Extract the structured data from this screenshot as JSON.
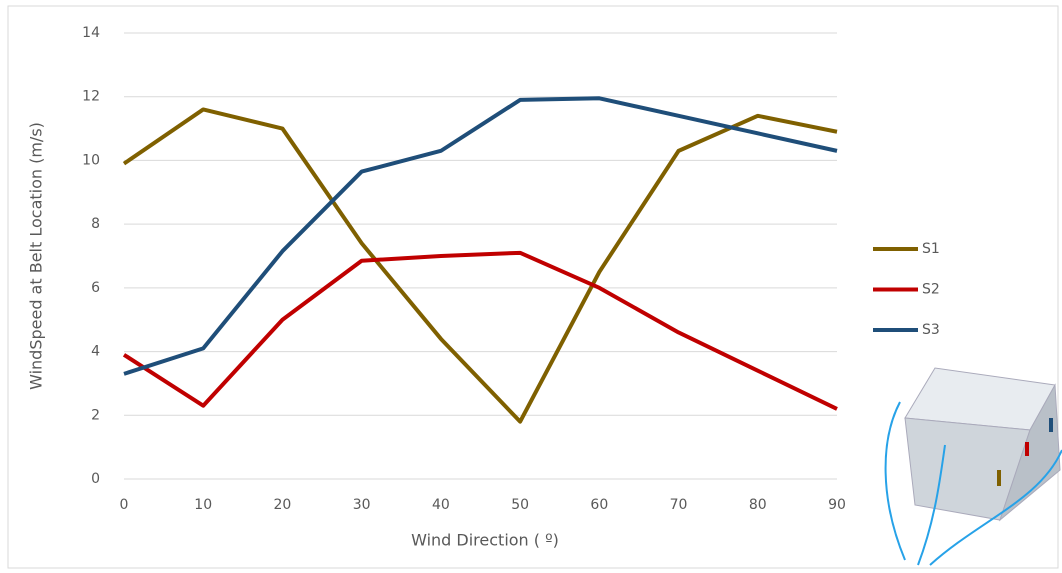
{
  "chart_data": {
    "type": "line",
    "xlabel": "Wind Direction ( º)",
    "ylabel": "WindSpeed at Belt Location (m/s)",
    "x": [
      0,
      10,
      20,
      30,
      40,
      50,
      60,
      70,
      80,
      90
    ],
    "series": [
      {
        "name": "S1",
        "color": "#7f6000",
        "values": [
          9.9,
          11.6,
          11.0,
          7.4,
          4.4,
          1.8,
          6.5,
          10.3,
          11.4,
          10.9
        ]
      },
      {
        "name": "S2",
        "color": "#c00000",
        "values": [
          3.9,
          2.3,
          5.0,
          6.85,
          7.0,
          7.1,
          6.0,
          4.6,
          3.4,
          2.2
        ]
      },
      {
        "name": "S3",
        "color": "#1f4e79",
        "values": [
          3.3,
          4.1,
          7.15,
          9.65,
          10.3,
          11.9,
          11.95,
          11.4,
          10.85,
          10.3
        ]
      }
    ],
    "xlim": [
      0,
      90
    ],
    "xticks": [
      0,
      10,
      20,
      30,
      40,
      50,
      60,
      70,
      80,
      90
    ],
    "ylim": [
      0,
      14
    ],
    "yticks": [
      0,
      2,
      4,
      6,
      8,
      10,
      12,
      14
    ],
    "grid": true,
    "legend": "right"
  }
}
